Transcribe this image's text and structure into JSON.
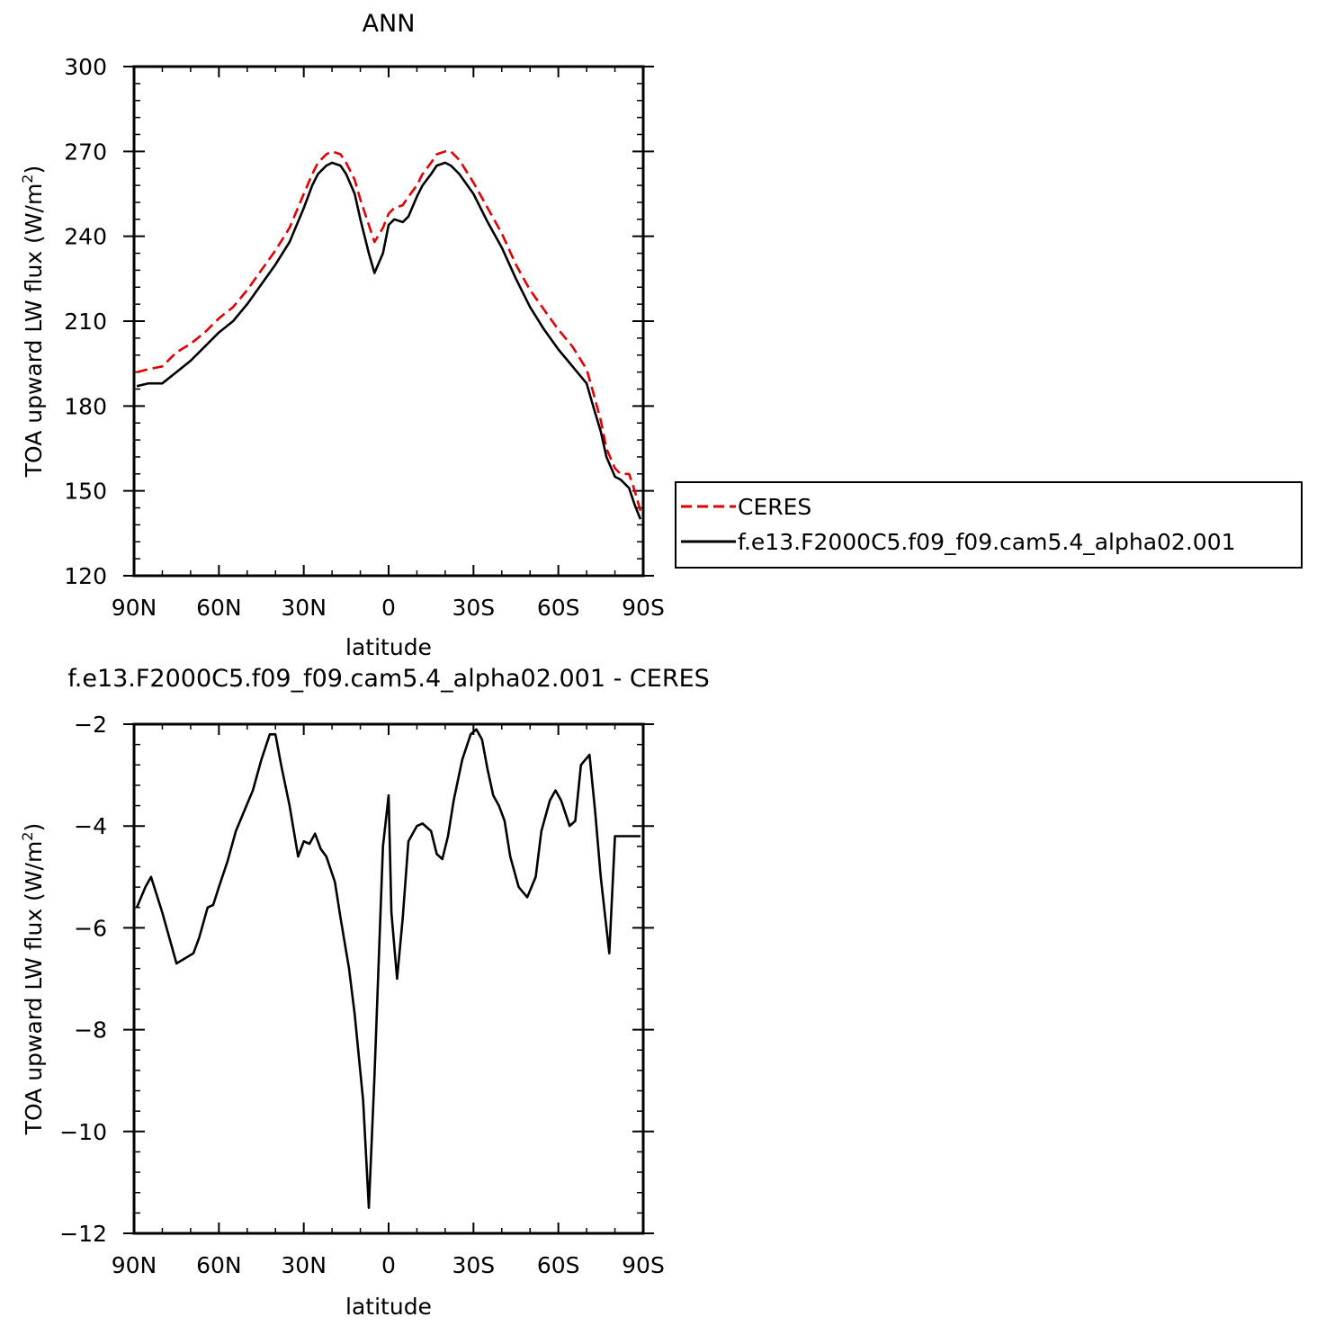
{
  "chart_data": [
    {
      "type": "line",
      "title": "ANN",
      "xlabel": "latitude",
      "ylabel": "TOA upward LW flux (W/m",
      "ylabel_sup": "2",
      "ylabel_close": ")",
      "xlim": [
        90,
        -90
      ],
      "ylim": [
        120,
        300
      ],
      "x_ticks": [
        90,
        60,
        30,
        0,
        -30,
        -60,
        -90
      ],
      "x_tick_labels": [
        "90N",
        "60N",
        "30N",
        "0",
        "30S",
        "60S",
        "90S"
      ],
      "y_ticks": [
        120,
        150,
        180,
        210,
        240,
        270,
        300
      ],
      "y_tick_labels": [
        "120",
        "150",
        "180",
        "210",
        "240",
        "270",
        "300"
      ],
      "legend_position": "right",
      "series": [
        {
          "name": "CERES",
          "color": "#e00000",
          "dash": true,
          "x": [
            89,
            85,
            80,
            75,
            70,
            65,
            60,
            55,
            50,
            45,
            40,
            35,
            30,
            27,
            25,
            22,
            20,
            17,
            15,
            12,
            10,
            7,
            5,
            2,
            0,
            -2,
            -5,
            -7,
            -10,
            -12,
            -15,
            -17,
            -20,
            -22,
            -25,
            -30,
            -35,
            -40,
            -45,
            -50,
            -55,
            -60,
            -65,
            -70,
            -72,
            -75,
            -77,
            -80,
            -82,
            -85,
            -87,
            -89
          ],
          "values": [
            192,
            193,
            194,
            199,
            202,
            206,
            211,
            215,
            221,
            228,
            235,
            243,
            255,
            262,
            266,
            269,
            270,
            269,
            266,
            260,
            253,
            244,
            238,
            243,
            248,
            250,
            251,
            254,
            258,
            262,
            266,
            269,
            270,
            270,
            267,
            259,
            250,
            241,
            230,
            221,
            214,
            207,
            201,
            193,
            186,
            175,
            165,
            158,
            156,
            156,
            150,
            143
          ]
        },
        {
          "name": "f.e13.F2000C5.f09_f09.cam5.4_alpha02.001",
          "color": "#000000",
          "dash": false,
          "x": [
            89,
            85,
            80,
            75,
            70,
            65,
            60,
            55,
            50,
            45,
            40,
            35,
            30,
            27,
            25,
            22,
            20,
            17,
            15,
            12,
            10,
            7,
            5,
            2,
            0,
            -2,
            -5,
            -7,
            -10,
            -12,
            -15,
            -17,
            -20,
            -22,
            -25,
            -30,
            -35,
            -40,
            -45,
            -50,
            -55,
            -60,
            -65,
            -70,
            -72,
            -75,
            -77,
            -80,
            -82,
            -85,
            -87,
            -89
          ],
          "values": [
            187,
            188,
            188,
            192,
            196,
            201,
            206,
            210,
            216,
            223,
            230,
            238,
            250,
            258,
            262,
            265,
            266,
            265,
            262,
            255,
            246,
            234,
            227,
            234,
            244,
            246,
            245,
            247,
            254,
            258,
            262,
            265,
            266,
            265,
            262,
            255,
            245,
            236,
            225,
            215,
            207,
            200,
            194,
            188,
            181,
            171,
            162,
            155,
            154,
            151,
            145,
            140
          ]
        }
      ]
    },
    {
      "type": "line",
      "title": "f.e13.F2000C5.f09_f09.cam5.4_alpha02.001  -  CERES",
      "xlabel": "latitude",
      "ylabel": "TOA upward LW flux (W/m",
      "ylabel_sup": "2",
      "ylabel_close": ")",
      "xlim": [
        90,
        -90
      ],
      "ylim": [
        -12,
        -2
      ],
      "x_ticks": [
        90,
        60,
        30,
        0,
        -30,
        -60,
        -90
      ],
      "x_tick_labels": [
        "90N",
        "60N",
        "30N",
        "0",
        "30S",
        "60S",
        "90S"
      ],
      "y_ticks": [
        -12,
        -10,
        -8,
        -6,
        -4,
        -2
      ],
      "y_tick_labels": [
        "−12",
        "−10",
        "−8",
        "−6",
        "−4",
        "−2"
      ],
      "series": [
        {
          "color": "#000000",
          "dash": false,
          "x": [
            89,
            86,
            84,
            80,
            77,
            75,
            72,
            69,
            67,
            64,
            62,
            60,
            57,
            54,
            51,
            48,
            45,
            42,
            40,
            38,
            35,
            32,
            30,
            28,
            26,
            24,
            22,
            19,
            17,
            14,
            12,
            9,
            7,
            5,
            2,
            0,
            -1,
            -3,
            -5,
            -7,
            -10,
            -12,
            -15,
            -17,
            -19,
            -21,
            -23,
            -26,
            -29,
            -31,
            -33,
            -35,
            -37,
            -39,
            -41,
            -43,
            -46,
            -49,
            -52,
            -54,
            -57,
            -59,
            -61,
            -64,
            -66,
            -68,
            -71,
            -73,
            -75,
            -78,
            -80,
            -82,
            -85,
            -87,
            -89
          ],
          "values": [
            -5.6,
            -5.2,
            -5.0,
            -5.7,
            -6.3,
            -6.7,
            -6.6,
            -6.5,
            -6.2,
            -5.6,
            -5.55,
            -5.2,
            -4.7,
            -4.1,
            -3.7,
            -3.3,
            -2.7,
            -2.2,
            -2.2,
            -2.8,
            -3.6,
            -4.6,
            -4.3,
            -4.35,
            -4.15,
            -4.45,
            -4.6,
            -5.1,
            -5.8,
            -6.8,
            -7.7,
            -9.4,
            -11.5,
            -8.9,
            -4.4,
            -3.4,
            -5.7,
            -7.0,
            -5.8,
            -4.3,
            -4.0,
            -3.95,
            -4.1,
            -4.55,
            -4.65,
            -4.2,
            -3.5,
            -2.7,
            -2.2,
            -2.1,
            -2.3,
            -2.9,
            -3.4,
            -3.6,
            -3.9,
            -4.6,
            -5.2,
            -5.4,
            -5.0,
            -4.1,
            -3.5,
            -3.3,
            -3.5,
            -4.0,
            -3.9,
            -2.8,
            -2.6,
            -3.7,
            -5.0,
            -6.5,
            -4.2,
            -4.2,
            -4.2,
            -4.2,
            -4.2
          ]
        }
      ]
    }
  ]
}
